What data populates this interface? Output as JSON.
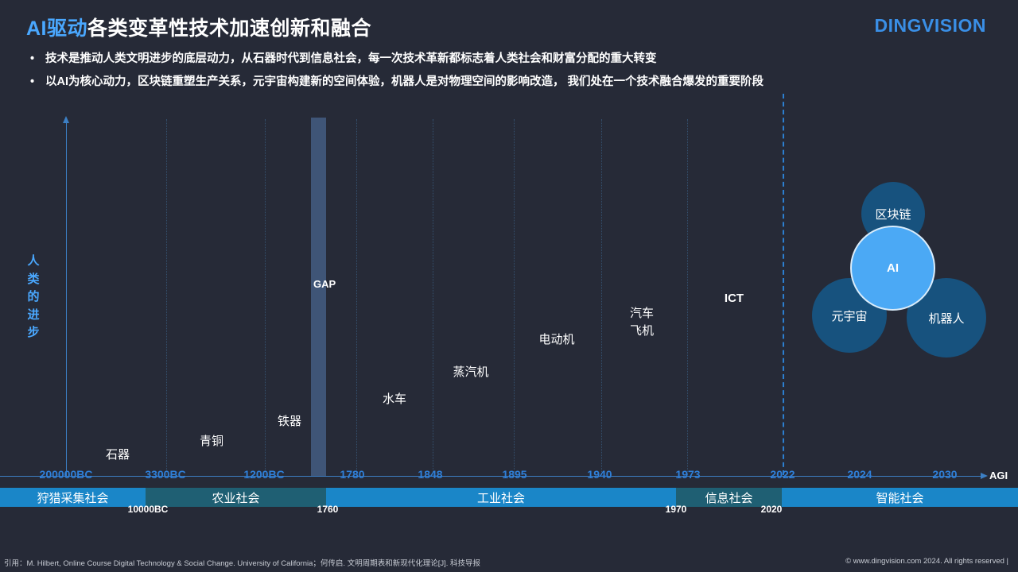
{
  "header": {
    "title_accent": "AI驱动",
    "title_rest": "各类变革性技术加速创新和融合",
    "logo": "DINGVISION"
  },
  "bullets": [
    "技术是推动人类文明进步的底层动力，从石器时代到信息社会，每一次技术革新都标志着人类社会和财富分配的重大转变",
    "以AI为核心动力，区块链重塑生产关系，元宇宙构建新的空间体验，机器人是对物理空间的影响改造， 我们处在一个技术融合爆发的重要阶段"
  ],
  "y_axis_label": "人类的进步",
  "x_axis_end": "AGI",
  "gap_label": "GAP",
  "year_ticks": [
    "200000BC",
    "3300BC",
    "1200BC",
    "1780",
    "1848",
    "1895",
    "1940",
    "1973",
    "2022",
    "2024",
    "2030"
  ],
  "technologies": [
    "石器",
    "青铜",
    "铁器",
    "水车",
    "蒸汽机",
    "电动机",
    "汽车\n飞机",
    "ICT"
  ],
  "eras": [
    {
      "label": "狩猎采集社会",
      "color": "#1a86c8"
    },
    {
      "label": "农业社会",
      "color": "#1f5f73"
    },
    {
      "label": "工业社会",
      "color": "#1a86c8"
    },
    {
      "label": "信息社会",
      "color": "#1f5f73"
    },
    {
      "label": "智能社会",
      "color": "#1a86c8"
    }
  ],
  "era_boundaries": [
    "10000BC",
    "1760",
    "1970",
    "2020"
  ],
  "convergence": {
    "center": "AI",
    "blockchain": "区块链",
    "metaverse": "元宇宙",
    "robot": "机器人"
  },
  "footer": {
    "citation": "引用：M. Hilbert, Online Course Digital Technology & Social Change. University of California；何传启. 文明周期表和新现代化理论[J]. 科技导报",
    "copyright": "© www.dingvision.com 2024. All rights reserved  |"
  }
}
